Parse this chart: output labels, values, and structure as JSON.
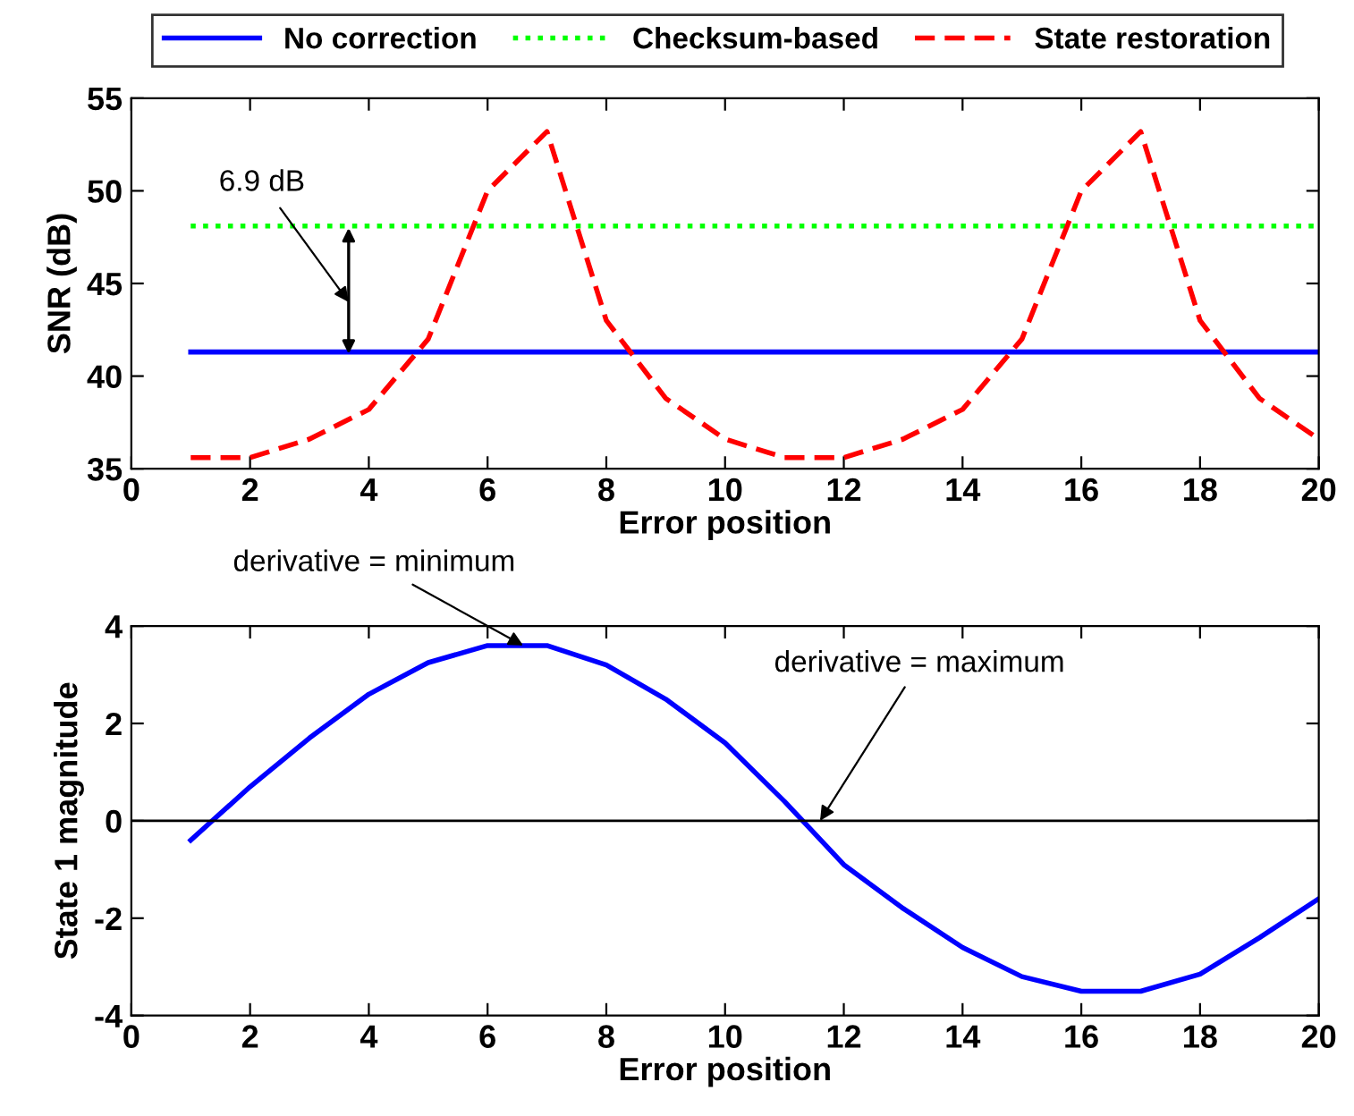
{
  "chart_data": [
    {
      "type": "line",
      "xlabel": "Error position",
      "ylabel": "SNR (dB)",
      "x": [
        1,
        2,
        3,
        4,
        5,
        6,
        7,
        8,
        9,
        10,
        11,
        12,
        13,
        14,
        15,
        16,
        17,
        18,
        19,
        20
      ],
      "xlim": [
        0,
        20
      ],
      "xticks": [
        0,
        2,
        4,
        6,
        8,
        10,
        12,
        14,
        16,
        18,
        20
      ],
      "ylim": [
        35,
        55
      ],
      "yticks": [
        35,
        40,
        45,
        50,
        55
      ],
      "legend": "top",
      "grid": false,
      "series": [
        {
          "name": "No correction",
          "color": "#0000ff",
          "line_style": "solid",
          "values": [
            41.3,
            41.3,
            41.3,
            41.3,
            41.3,
            41.3,
            41.3,
            41.3,
            41.3,
            41.3,
            41.3,
            41.3,
            41.3,
            41.3,
            41.3,
            41.3,
            41.3,
            41.3,
            41.3,
            41.3
          ]
        },
        {
          "name": "Checksum-based",
          "color": "#00ff00",
          "line_style": "dotted",
          "values": [
            48.1,
            48.1,
            48.1,
            48.1,
            48.1,
            48.1,
            48.1,
            48.1,
            48.1,
            48.1,
            48.1,
            48.1,
            48.1,
            48.1,
            48.1,
            48.1,
            48.1,
            48.1,
            48.1,
            48.1
          ]
        },
        {
          "name": "State restoration",
          "color": "#ff0000",
          "line_style": "dashed",
          "values": [
            35.6,
            35.6,
            36.6,
            38.2,
            42,
            50,
            53.2,
            43,
            38.8,
            36.6,
            35.6,
            35.6,
            36.6,
            38.2,
            42,
            50,
            53.2,
            43,
            38.8,
            36.6
          ]
        }
      ],
      "annotations": [
        "6.9 dB"
      ]
    },
    {
      "type": "line",
      "xlabel": "Error position",
      "ylabel": "State 1 magnitude",
      "x": [
        1,
        2,
        3,
        4,
        5,
        6,
        7,
        8,
        9,
        10,
        11,
        12,
        13,
        14,
        15,
        16,
        17,
        18,
        19,
        20
      ],
      "xlim": [
        0,
        20
      ],
      "xticks": [
        0,
        2,
        4,
        6,
        8,
        10,
        12,
        14,
        16,
        18,
        20
      ],
      "ylim": [
        -4,
        4
      ],
      "yticks": [
        -4,
        -2,
        0,
        2,
        4
      ],
      "legend": false,
      "grid": false,
      "ref_lines": [
        {
          "axis": "y",
          "value": 0,
          "color": "#000000",
          "line_style": "solid"
        }
      ],
      "series": [
        {
          "color": "#0000ff",
          "line_style": "solid",
          "values": [
            -0.4,
            0.7,
            1.7,
            2.6,
            3.25,
            3.6,
            3.6,
            3.2,
            2.5,
            1.6,
            0.4,
            -0.9,
            -1.8,
            -2.6,
            -3.2,
            -3.5,
            -3.5,
            -3.15,
            -2.4,
            -1.6
          ]
        }
      ],
      "annotations": [
        {
          "text": "derivative = minimum",
          "x": 6.6,
          "y": 3.6
        },
        {
          "text": "derivative = maximum",
          "x": 11.6,
          "y": 0
        }
      ]
    }
  ]
}
